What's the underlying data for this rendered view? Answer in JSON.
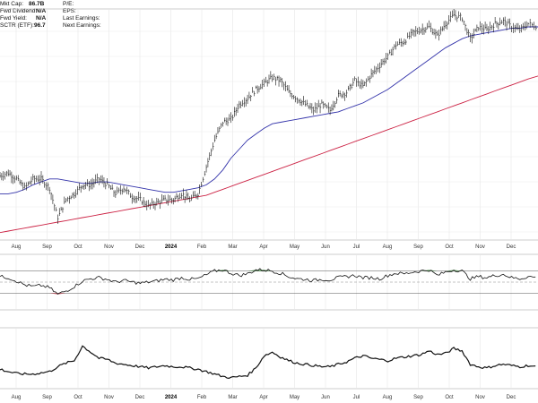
{
  "chart_data": {
    "type": "line",
    "info_left": [
      {
        "label": "Mkt Cap:",
        "value": "86.7B"
      },
      {
        "label": "Fwd Dividend:",
        "value": "N/A"
      },
      {
        "label": "Fwd Yield:",
        "value": "N/A"
      },
      {
        "label": "SCTR (ETF):",
        "value": "96.7"
      }
    ],
    "info_right": [
      {
        "label": "P/E:",
        "value": ""
      },
      {
        "label": "EPS:",
        "value": ""
      },
      {
        "label": "Last Earnings:",
        "value": ""
      },
      {
        "label": "Next Earnings:",
        "value": ""
      }
    ],
    "x_ticks": [
      "Aug",
      "Sep",
      "Oct",
      "Nov",
      "Dec",
      "2024",
      "Feb",
      "Mar",
      "Apr",
      "May",
      "Jun",
      "Jul",
      "Aug",
      "Sep",
      "Oct",
      "Nov",
      "Dec"
    ],
    "price": {
      "x": [
        0,
        0.25,
        0.5,
        0.75,
        1,
        1.25,
        1.5,
        1.75,
        2,
        2.25,
        2.5,
        2.75,
        3,
        3.25,
        3.5,
        3.75,
        4,
        4.25,
        4.5,
        4.75,
        5,
        5.25,
        5.5,
        5.75,
        6,
        6.25,
        6.5,
        6.75,
        7,
        7.25,
        7.5,
        7.75,
        8,
        8.25,
        8.5,
        8.75,
        9,
        9.25,
        9.5,
        9.75,
        10,
        10.25,
        10.5,
        10.75,
        11,
        11.25,
        11.5,
        11.75,
        12,
        12.25,
        12.5,
        12.75,
        13,
        13.25,
        13.5,
        13.75,
        14,
        14.25,
        14.5,
        14.75,
        15,
        15.25,
        15.5,
        15.75,
        16,
        16.3
      ],
      "values": [
        238,
        240,
        236,
        230,
        236,
        236,
        230,
        210,
        222,
        226,
        232,
        232,
        236,
        232,
        226,
        230,
        224,
        222,
        218,
        220,
        222,
        222,
        226,
        222,
        226,
        244,
        262,
        274,
        276,
        286,
        290,
        296,
        300,
        304,
        302,
        294,
        290,
        286,
        282,
        286,
        282,
        292,
        294,
        302,
        298,
        306,
        312,
        318,
        326,
        328,
        334,
        336,
        338,
        332,
        340,
        346,
        344,
        330,
        338,
        336,
        340,
        342,
        338,
        336,
        340,
        338
      ],
      "ma_short": [
        226,
        226,
        227,
        229,
        232,
        234,
        236,
        236,
        235,
        234,
        233,
        233,
        234,
        234,
        233,
        232,
        231,
        230,
        229,
        228,
        227,
        227,
        228,
        229,
        230,
        232,
        236,
        242,
        250,
        256,
        262,
        266,
        270,
        273,
        274,
        275,
        276,
        277,
        278,
        279,
        280,
        281,
        283,
        285,
        287,
        290,
        293,
        296,
        300,
        304,
        308,
        312,
        316,
        320,
        324,
        327,
        330,
        332,
        333,
        334,
        335,
        336,
        337,
        337,
        338,
        338
      ],
      "ma_long": [
        200,
        201,
        202,
        203,
        204,
        205,
        206,
        207,
        208,
        209,
        210,
        211,
        212,
        213,
        214,
        215,
        216,
        217,
        218,
        219,
        220,
        221,
        222,
        223,
        224,
        225,
        227,
        229,
        231,
        233,
        235,
        237,
        239,
        241,
        243,
        245,
        247,
        249,
        251,
        253,
        255,
        257,
        259,
        261,
        263,
        265,
        267,
        269,
        271,
        273,
        275,
        277,
        279,
        281,
        283,
        285,
        287,
        289,
        291,
        293,
        295,
        297,
        299,
        301,
        303,
        305
      ],
      "ylim": [
        195,
        350
      ]
    },
    "oscillator": {
      "values": [
        60,
        58,
        52,
        45,
        42,
        44,
        40,
        28,
        34,
        42,
        52,
        56,
        58,
        55,
        50,
        53,
        50,
        48,
        50,
        52,
        55,
        54,
        58,
        55,
        56,
        63,
        70,
        72,
        66,
        62,
        65,
        72,
        72,
        70,
        66,
        60,
        56,
        55,
        53,
        55,
        54,
        58,
        60,
        62,
        58,
        58,
        56,
        62,
        66,
        65,
        68,
        70,
        72,
        62,
        68,
        72,
        70,
        56,
        60,
        58,
        62,
        64,
        58,
        56,
        60,
        58
      ],
      "ylim": [
        0,
        100
      ],
      "levels": [
        30,
        70
      ]
    },
    "volume_line": {
      "values": [
        32,
        28,
        25,
        24,
        24,
        26,
        28,
        36,
        42,
        46,
        70,
        60,
        50,
        48,
        42,
        40,
        38,
        36,
        34,
        36,
        38,
        36,
        36,
        34,
        32,
        28,
        24,
        20,
        18,
        20,
        22,
        34,
        54,
        60,
        52,
        46,
        42,
        40,
        38,
        36,
        36,
        40,
        44,
        50,
        54,
        50,
        48,
        46,
        50,
        52,
        54,
        56,
        62,
        56,
        58,
        66,
        62,
        40,
        36,
        34,
        38,
        40,
        38,
        36,
        38,
        36
      ],
      "ylim": [
        0,
        100
      ]
    }
  }
}
